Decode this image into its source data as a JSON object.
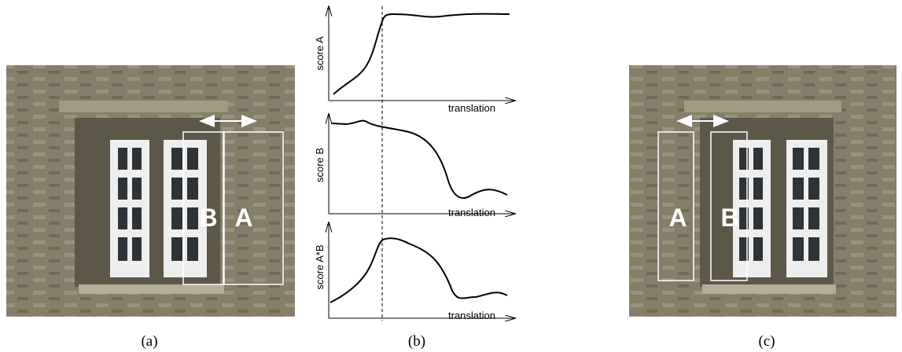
{
  "panels": [
    {
      "caption": "(a)",
      "boxes": [
        "B",
        "A"
      ]
    },
    {
      "caption": "(b)",
      "plots": [
        {
          "ylabel": "score A",
          "xlabel": "translation"
        },
        {
          "ylabel": "score B",
          "xlabel": "translation"
        },
        {
          "ylabel": "score A*B",
          "xlabel": "translation"
        }
      ]
    },
    {
      "caption": "(c)",
      "boxes": [
        "A",
        "B"
      ]
    }
  ]
}
